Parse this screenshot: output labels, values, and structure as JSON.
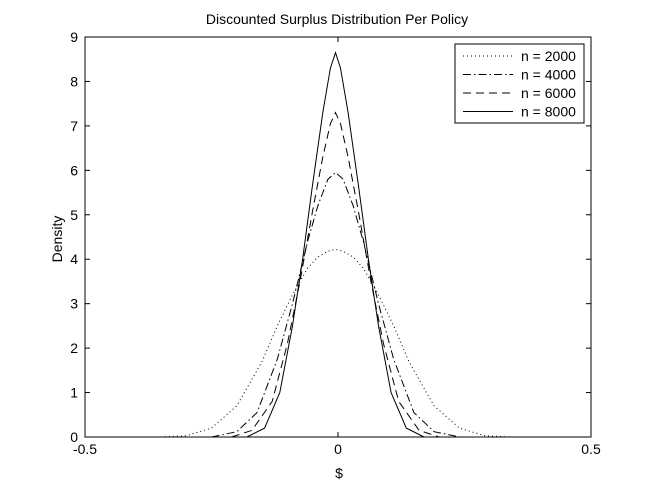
{
  "chart_data": {
    "type": "line",
    "title": "Discounted Surplus Distribution Per Policy",
    "xlabel": "$",
    "ylabel": "Density",
    "xlim": [
      -0.5,
      0.5
    ],
    "ylim": [
      0,
      9
    ],
    "xticks": [
      -0.5,
      0,
      0.5
    ],
    "yticks": [
      0,
      1,
      2,
      3,
      4,
      5,
      6,
      7,
      8,
      9
    ],
    "grid": false,
    "legend_position": "top-right",
    "series": [
      {
        "name": "n = 2000",
        "style": "dotted",
        "color": "#000000",
        "x": [
          -0.35,
          -0.3,
          -0.25,
          -0.2,
          -0.15,
          -0.12,
          -0.09,
          -0.06,
          -0.04,
          -0.02,
          -0.005,
          0.01,
          0.03,
          0.05,
          0.08,
          0.11,
          0.14,
          0.19,
          0.24,
          0.29,
          0.34
        ],
        "y": [
          0.0,
          0.03,
          0.2,
          0.7,
          1.7,
          2.5,
          3.2,
          3.8,
          4.05,
          4.18,
          4.22,
          4.18,
          4.05,
          3.8,
          3.2,
          2.5,
          1.7,
          0.7,
          0.2,
          0.03,
          0.0
        ]
      },
      {
        "name": "n = 4000",
        "style": "dashdot",
        "color": "#000000",
        "x": [
          -0.25,
          -0.2,
          -0.16,
          -0.12,
          -0.09,
          -0.06,
          -0.04,
          -0.02,
          -0.005,
          0.01,
          0.03,
          0.05,
          0.08,
          0.11,
          0.15,
          0.19,
          0.24
        ],
        "y": [
          0.0,
          0.12,
          0.55,
          1.75,
          3.0,
          4.4,
          5.2,
          5.8,
          5.95,
          5.8,
          5.2,
          4.4,
          3.0,
          1.75,
          0.55,
          0.12,
          0.0
        ]
      },
      {
        "name": "n = 6000",
        "style": "dashed",
        "color": "#000000",
        "x": [
          -0.21,
          -0.17,
          -0.13,
          -0.1,
          -0.075,
          -0.05,
          -0.03,
          -0.015,
          -0.005,
          0.005,
          0.02,
          0.04,
          0.065,
          0.09,
          0.12,
          0.16,
          0.2
        ],
        "y": [
          0.0,
          0.15,
          0.8,
          2.1,
          3.5,
          5.1,
          6.3,
          7.05,
          7.3,
          7.05,
          6.3,
          5.1,
          3.5,
          2.1,
          0.8,
          0.15,
          0.0
        ]
      },
      {
        "name": "n = 8000",
        "style": "solid",
        "color": "#000000",
        "x": [
          -0.18,
          -0.145,
          -0.115,
          -0.09,
          -0.07,
          -0.05,
          -0.03,
          -0.015,
          -0.005,
          0.005,
          0.02,
          0.04,
          0.06,
          0.08,
          0.105,
          0.135,
          0.17
        ],
        "y": [
          0.0,
          0.2,
          1.0,
          2.5,
          4.0,
          5.7,
          7.3,
          8.3,
          8.65,
          8.3,
          7.3,
          5.7,
          4.0,
          2.5,
          1.0,
          0.2,
          0.0
        ]
      }
    ]
  }
}
